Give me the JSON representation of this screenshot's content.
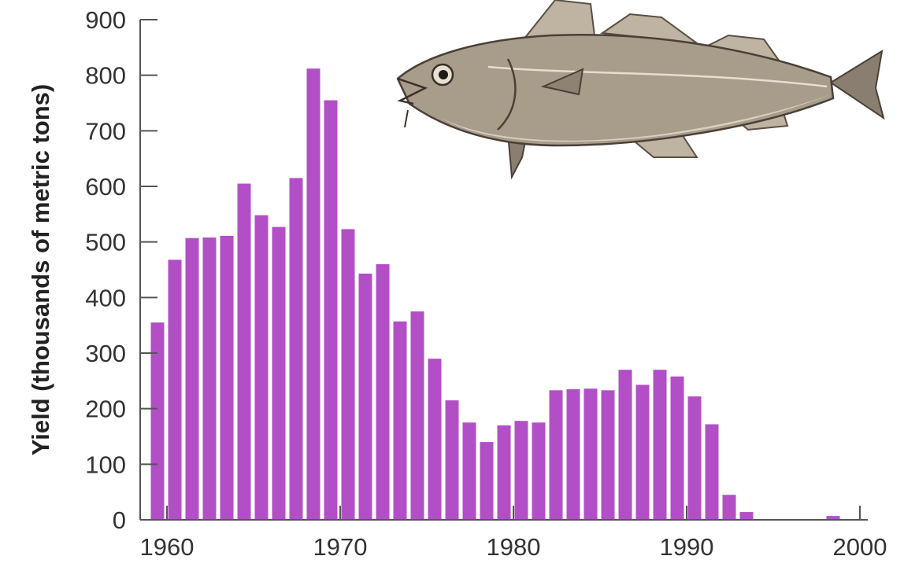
{
  "chart_data": {
    "type": "bar",
    "title": "",
    "xlabel": "",
    "ylabel": "Yield (thousands of metric tons)",
    "ylim": [
      0,
      900
    ],
    "xlim": [
      1959,
      2000
    ],
    "y_ticks": [
      0,
      100,
      200,
      300,
      400,
      500,
      600,
      700,
      800,
      900
    ],
    "x_ticks": [
      1960,
      1970,
      1980,
      1990,
      2000
    ],
    "grid": false,
    "legend": "none",
    "bar_color": "#b24fc7",
    "years": [
      1959,
      1960,
      1961,
      1962,
      1963,
      1964,
      1965,
      1966,
      1967,
      1968,
      1969,
      1970,
      1971,
      1972,
      1973,
      1974,
      1975,
      1976,
      1977,
      1978,
      1979,
      1980,
      1981,
      1982,
      1983,
      1984,
      1985,
      1986,
      1987,
      1988,
      1989,
      1990,
      1991,
      1992,
      1993,
      1994,
      1995,
      1996,
      1997,
      1998
    ],
    "values": [
      355,
      468,
      507,
      508,
      511,
      605,
      548,
      527,
      615,
      812,
      755,
      523,
      443,
      460,
      357,
      375,
      290,
      215,
      175,
      140,
      170,
      178,
      175,
      233,
      235,
      236,
      233,
      270,
      243,
      270,
      258,
      222,
      172,
      45,
      14,
      0,
      0,
      0,
      0,
      7
    ]
  },
  "decoration": {
    "image": "cod-fish-illustration"
  }
}
